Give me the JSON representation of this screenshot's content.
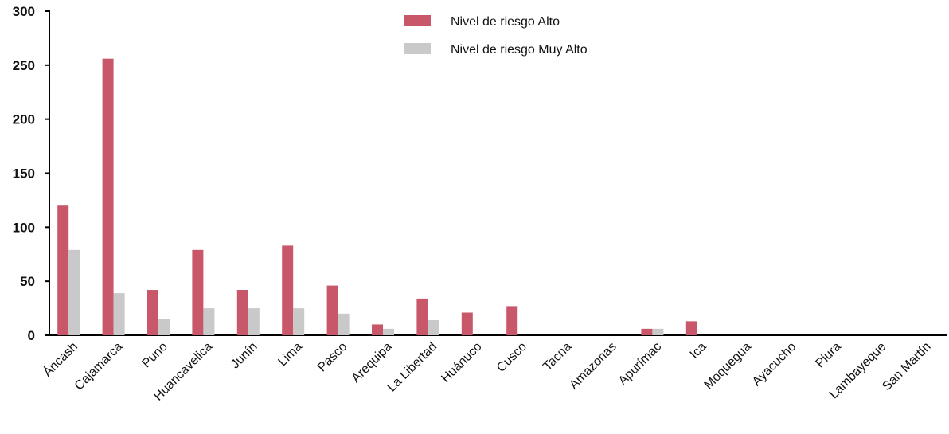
{
  "chart_data": {
    "type": "bar",
    "categories": [
      "Áncash",
      "Cajamarca",
      "Puno",
      "Huancavelica",
      "Junín",
      "Lima",
      "Pasco",
      "Arequipa",
      "La Libertad",
      "Huánuco",
      "Cusco",
      "Tacna",
      "Amazonas",
      "Apurímac",
      "Ica",
      "Moquegua",
      "Ayacucho",
      "Piura",
      "Lambayeque",
      "San Martín"
    ],
    "series": [
      {
        "name": "Nivel de riesgo Alto",
        "color": "#c8576a",
        "values": [
          120,
          256,
          42,
          79,
          42,
          83,
          46,
          10,
          34,
          21,
          27,
          0,
          0,
          6,
          13,
          0,
          0,
          0,
          0,
          0
        ]
      },
      {
        "name": "Nivel de riesgo Muy Alto",
        "color": "#c9c9c9",
        "values": [
          79,
          39,
          15,
          25,
          25,
          25,
          20,
          6,
          14,
          0,
          0,
          0,
          0,
          6,
          0,
          0,
          0,
          0,
          0,
          0
        ]
      }
    ],
    "title": "",
    "xlabel": "",
    "ylabel": "",
    "ylim": [
      0,
      300
    ],
    "yticks": [
      0,
      50,
      100,
      150,
      200,
      250,
      300
    ],
    "grid": false,
    "legend_position": "top-center"
  }
}
